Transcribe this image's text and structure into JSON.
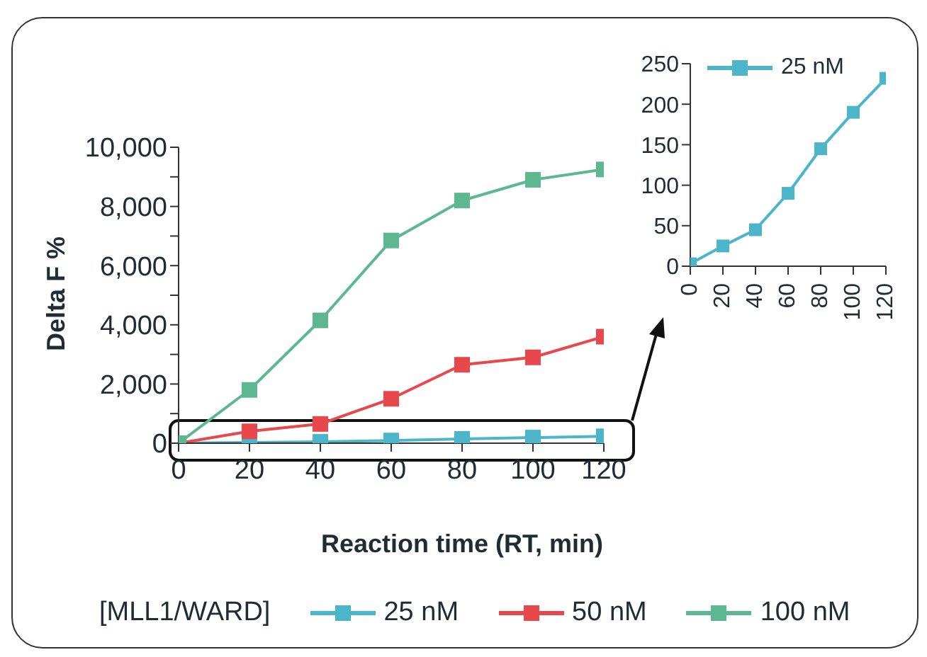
{
  "chart_data": [
    {
      "type": "line",
      "xlabel": "Reaction time (RT, min)",
      "ylabel": "Delta F %",
      "legend_title": "[MLL1/WARD]",
      "x": [
        0,
        20,
        40,
        60,
        80,
        100,
        120
      ],
      "xlim": [
        0,
        120
      ],
      "xticks": [
        0,
        20,
        40,
        60,
        80,
        100,
        120
      ],
      "ylim": [
        0,
        10000
      ],
      "yticks": [
        {
          "value": 0,
          "label": "0"
        },
        {
          "value": 1000,
          "label": null
        },
        {
          "value": 2000,
          "label": "2,000"
        },
        {
          "value": 3000,
          "label": null
        },
        {
          "value": 4000,
          "label": "4,000"
        },
        {
          "value": 5000,
          "label": null
        },
        {
          "value": 6000,
          "label": "6,000"
        },
        {
          "value": 7000,
          "label": null
        },
        {
          "value": 8000,
          "label": "8,000"
        },
        {
          "value": 9000,
          "label": null
        },
        {
          "value": 10000,
          "label": "10,000"
        }
      ],
      "grid": false,
      "legend": "bottom",
      "marker": "square",
      "line_style": "solid",
      "series": [
        {
          "name": "25 nM",
          "color": "#4bb5c9",
          "values": [
            3,
            25,
            45,
            90,
            145,
            190,
            232
          ]
        },
        {
          "name": "50 nM",
          "color": "#e8474c",
          "values": [
            0,
            400,
            650,
            1500,
            2650,
            2900,
            3600
          ]
        },
        {
          "name": "100 nM",
          "color": "#5db891",
          "values": [
            0,
            1800,
            4150,
            6850,
            8200,
            8900,
            9250
          ]
        }
      ]
    },
    {
      "type": "line",
      "x": [
        0,
        20,
        40,
        60,
        80,
        100,
        120
      ],
      "xlim": [
        0,
        120
      ],
      "xticks": [
        0,
        20,
        40,
        60,
        80,
        100,
        120
      ],
      "ylim": [
        0,
        250
      ],
      "yticks": [
        0,
        50,
        100,
        150,
        200,
        250
      ],
      "grid": false,
      "legend": "top left",
      "marker": "square",
      "line_style": "solid",
      "series": [
        {
          "name": "25 nM",
          "color": "#4bb5c9",
          "values": [
            3,
            25,
            45,
            90,
            145,
            190,
            232
          ]
        }
      ]
    }
  ]
}
